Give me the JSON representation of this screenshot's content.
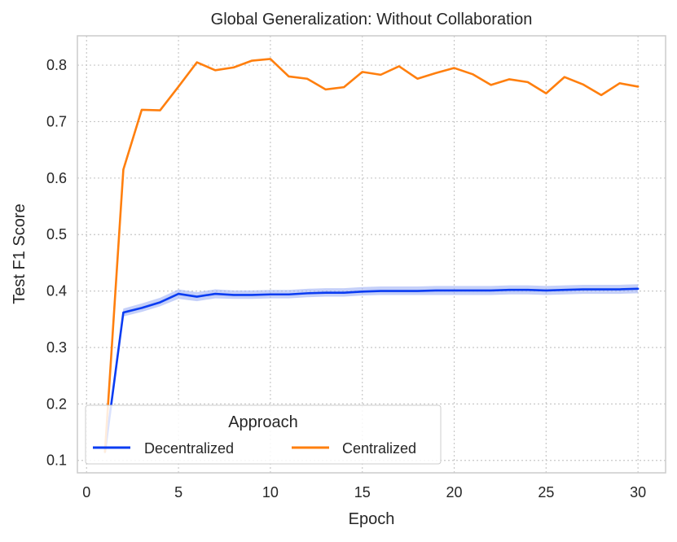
{
  "chart_data": {
    "type": "line",
    "title": "Global Generalization: Without Collaboration",
    "xlabel": "Epoch",
    "ylabel": "Test F1 Score",
    "xlim": [
      -0.5,
      31.5
    ],
    "ylim": [
      0.078,
      0.852
    ],
    "xticks": [
      0,
      5,
      10,
      15,
      20,
      25,
      30
    ],
    "yticks": [
      0.1,
      0.2,
      0.3,
      0.4,
      0.5,
      0.6,
      0.7,
      0.8
    ],
    "grid": true,
    "legend": {
      "title": "Approach",
      "placement": "lower-left",
      "columns": 2
    },
    "x": [
      1,
      2,
      3,
      4,
      5,
      6,
      7,
      8,
      9,
      10,
      11,
      12,
      13,
      14,
      15,
      16,
      17,
      18,
      19,
      20,
      21,
      22,
      23,
      24,
      25,
      26,
      27,
      28,
      29,
      30
    ],
    "series": [
      {
        "name": "Decentralized",
        "color": "#0a3cf2",
        "band_color": "#9eb0f5",
        "values": [
          0.115,
          0.362,
          0.37,
          0.38,
          0.395,
          0.39,
          0.395,
          0.393,
          0.393,
          0.394,
          0.394,
          0.396,
          0.397,
          0.397,
          0.399,
          0.4,
          0.4,
          0.4,
          0.401,
          0.401,
          0.401,
          0.401,
          0.402,
          0.402,
          0.401,
          0.402,
          0.403,
          0.403,
          0.403,
          0.404
        ],
        "lower": [
          0.11,
          0.355,
          0.363,
          0.373,
          0.386,
          0.382,
          0.387,
          0.386,
          0.386,
          0.387,
          0.387,
          0.389,
          0.39,
          0.39,
          0.392,
          0.393,
          0.393,
          0.393,
          0.393,
          0.393,
          0.393,
          0.393,
          0.394,
          0.394,
          0.393,
          0.394,
          0.395,
          0.395,
          0.395,
          0.396
        ],
        "upper": [
          0.12,
          0.369,
          0.378,
          0.388,
          0.403,
          0.398,
          0.403,
          0.401,
          0.401,
          0.402,
          0.402,
          0.404,
          0.405,
          0.405,
          0.407,
          0.408,
          0.408,
          0.408,
          0.409,
          0.409,
          0.409,
          0.409,
          0.41,
          0.41,
          0.409,
          0.41,
          0.411,
          0.411,
          0.411,
          0.412
        ]
      },
      {
        "name": "Centralized",
        "color": "#ff7f0e",
        "values": [
          0.115,
          0.615,
          0.721,
          0.72,
          0.762,
          0.805,
          0.791,
          0.796,
          0.808,
          0.811,
          0.78,
          0.776,
          0.757,
          0.761,
          0.788,
          0.783,
          0.798,
          0.776,
          0.786,
          0.795,
          0.784,
          0.765,
          0.775,
          0.77,
          0.75,
          0.779,
          0.766,
          0.747,
          0.768,
          0.762
        ]
      }
    ]
  }
}
